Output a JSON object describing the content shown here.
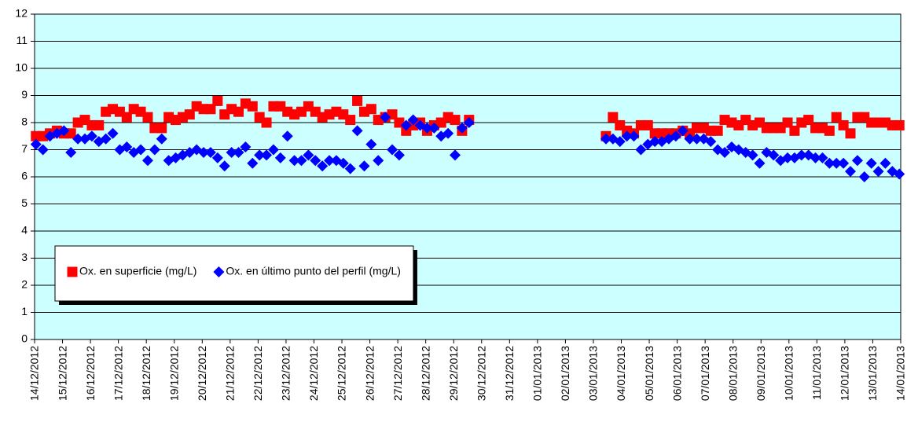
{
  "chart_data": {
    "type": "scatter",
    "x": [
      41257.05,
      41257.3,
      41257.55,
      41257.8,
      41258.05,
      41258.3,
      41258.55,
      41258.8,
      41259.05,
      41259.3,
      41259.55,
      41259.8,
      41260.05,
      41260.3,
      41260.55,
      41260.8,
      41261.05,
      41261.3,
      41261.55,
      41261.8,
      41262.05,
      41262.3,
      41262.55,
      41262.8,
      41263.05,
      41263.3,
      41263.55,
      41263.8,
      41264.05,
      41264.3,
      41264.55,
      41264.8,
      41265.05,
      41265.3,
      41265.55,
      41265.8,
      41266.05,
      41266.3,
      41266.55,
      41266.8,
      41267.05,
      41267.3,
      41267.55,
      41267.8,
      41268.05,
      41268.3,
      41268.55,
      41268.8,
      41269.05,
      41269.3,
      41269.55,
      41269.8,
      41270.05,
      41270.3,
      41270.55,
      41270.8,
      41271.05,
      41271.3,
      41271.55,
      41271.8,
      41272.05,
      41272.3,
      41272.55,
      41277.45,
      41277.7,
      41277.95,
      41278.2,
      41278.45,
      41278.7,
      41278.95,
      41279.2,
      41279.45,
      41279.7,
      41279.95,
      41280.2,
      41280.45,
      41280.7,
      41280.95,
      41281.2,
      41281.45,
      41281.7,
      41281.95,
      41282.2,
      41282.45,
      41282.7,
      41282.95,
      41283.2,
      41283.45,
      41283.7,
      41283.95,
      41284.2,
      41284.45,
      41284.7,
      41284.95,
      41285.2,
      41285.45,
      41285.7,
      41285.95,
      41286.2,
      41286.45,
      41286.7,
      41286.95,
      41287.2,
      41287.45,
      41287.7,
      41287.95
    ],
    "series": [
      {
        "name": "Ox. en superficie (mg/L)",
        "color": "#ff0000",
        "marker": "square",
        "values": [
          7.5,
          7.5,
          7.6,
          7.7,
          7.6,
          7.6,
          8.0,
          8.1,
          7.9,
          7.9,
          8.4,
          8.5,
          8.4,
          8.2,
          8.5,
          8.4,
          8.2,
          7.8,
          7.8,
          8.2,
          8.1,
          8.2,
          8.3,
          8.6,
          8.5,
          8.5,
          8.8,
          8.3,
          8.5,
          8.4,
          8.7,
          8.6,
          8.2,
          8.0,
          8.6,
          8.6,
          8.4,
          8.3,
          8.4,
          8.6,
          8.4,
          8.2,
          8.3,
          8.4,
          8.3,
          8.1,
          8.8,
          8.4,
          8.5,
          8.1,
          8.2,
          8.3,
          8.0,
          7.7,
          7.9,
          8.0,
          7.7,
          7.9,
          8.0,
          8.2,
          8.1,
          7.7,
          8.1,
          7.5,
          8.2,
          7.9,
          7.7,
          7.6,
          7.9,
          7.9,
          7.6,
          7.6,
          7.6,
          7.6,
          7.7,
          7.6,
          7.8,
          7.8,
          7.7,
          7.7,
          8.1,
          8.0,
          7.9,
          8.1,
          7.9,
          8.0,
          7.8,
          7.8,
          7.8,
          8.0,
          7.7,
          8.0,
          8.1,
          7.8,
          7.8,
          7.7,
          8.2,
          7.9,
          7.6,
          8.2,
          8.2,
          8.0,
          8.0,
          8.0,
          7.9,
          7.9
        ]
      },
      {
        "name": "Ox. en último punto del perfil (mg/L)",
        "color": "#0000ff",
        "marker": "diamond",
        "values": [
          7.2,
          7.0,
          7.5,
          7.6,
          7.7,
          6.9,
          7.4,
          7.4,
          7.5,
          7.3,
          7.4,
          7.6,
          7.0,
          7.1,
          6.9,
          7.0,
          6.6,
          7.0,
          7.4,
          6.6,
          6.7,
          6.8,
          6.9,
          7.0,
          6.9,
          6.9,
          6.7,
          6.4,
          6.9,
          6.9,
          7.1,
          6.5,
          6.8,
          6.8,
          7.0,
          6.7,
          7.5,
          6.6,
          6.6,
          6.8,
          6.6,
          6.4,
          6.6,
          6.6,
          6.5,
          6.3,
          7.7,
          6.4,
          7.2,
          6.6,
          8.2,
          7.0,
          6.8,
          7.9,
          8.1,
          7.9,
          7.8,
          7.8,
          7.5,
          7.6,
          6.8,
          7.8,
          8.0,
          7.4,
          7.4,
          7.3,
          7.5,
          7.5,
          7.0,
          7.2,
          7.3,
          7.3,
          7.4,
          7.5,
          7.7,
          7.4,
          7.4,
          7.4,
          7.3,
          7.0,
          6.9,
          7.1,
          7.0,
          6.9,
          6.8,
          6.5,
          6.9,
          6.8,
          6.6,
          6.7,
          6.7,
          6.8,
          6.8,
          6.7,
          6.7,
          6.5,
          6.5,
          6.5,
          6.2,
          6.6,
          6.0,
          6.5,
          6.2,
          6.5,
          6.2,
          6.1
        ]
      }
    ],
    "xlim": [
      41257,
      41288
    ],
    "xticks": [
      {
        "value": 41257,
        "label": "14/12/2012"
      },
      {
        "value": 41258,
        "label": "15/12/2012"
      },
      {
        "value": 41259,
        "label": "16/12/2012"
      },
      {
        "value": 41260,
        "label": "17/12/2012"
      },
      {
        "value": 41261,
        "label": "18/12/2012"
      },
      {
        "value": 41262,
        "label": "19/12/2012"
      },
      {
        "value": 41263,
        "label": "20/12/2012"
      },
      {
        "value": 41264,
        "label": "21/12/2012"
      },
      {
        "value": 41265,
        "label": "22/12/2012"
      },
      {
        "value": 41266,
        "label": "23/12/2012"
      },
      {
        "value": 41267,
        "label": "24/12/2012"
      },
      {
        "value": 41268,
        "label": "25/12/2012"
      },
      {
        "value": 41269,
        "label": "26/12/2012"
      },
      {
        "value": 41270,
        "label": "27/12/2012"
      },
      {
        "value": 41271,
        "label": "28/12/2012"
      },
      {
        "value": 41272,
        "label": "29/12/2012"
      },
      {
        "value": 41273,
        "label": "30/12/2012"
      },
      {
        "value": 41274,
        "label": "31/12/2012"
      },
      {
        "value": 41275,
        "label": "01/01/2013"
      },
      {
        "value": 41276,
        "label": "02/01/2013"
      },
      {
        "value": 41277,
        "label": "03/01/2013"
      },
      {
        "value": 41278,
        "label": "04/01/2013"
      },
      {
        "value": 41279,
        "label": "05/01/2013"
      },
      {
        "value": 41280,
        "label": "06/01/2013"
      },
      {
        "value": 41281,
        "label": "07/01/2013"
      },
      {
        "value": 41282,
        "label": "08/01/2013"
      },
      {
        "value": 41283,
        "label": "09/01/2013"
      },
      {
        "value": 41284,
        "label": "10/01/2013"
      },
      {
        "value": 41285,
        "label": "11/01/2013"
      },
      {
        "value": 41286,
        "label": "12/01/2013"
      },
      {
        "value": 41287,
        "label": "13/01/2013"
      },
      {
        "value": 41288,
        "label": "14/01/2013"
      }
    ],
    "ylim": [
      0,
      12
    ],
    "yticks": [
      0,
      1,
      2,
      3,
      4,
      5,
      6,
      7,
      8,
      9,
      10,
      11,
      12
    ],
    "grid": true,
    "plot_background": "#ccffff",
    "legend_position": "lower left"
  }
}
